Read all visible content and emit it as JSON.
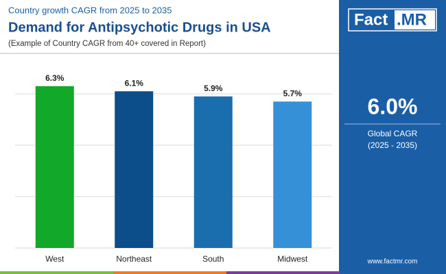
{
  "header": {
    "kicker": "Country growth CAGR from 2025 to 2035",
    "title": "Demand for Antipsychotic Drugs in USA",
    "subtitle": "(Example of Country CAGR from 40+ covered in Report)"
  },
  "chart_data": {
    "type": "bar",
    "categories": [
      "West",
      "Northeast",
      "South",
      "Midwest"
    ],
    "values": [
      6.3,
      6.1,
      5.9,
      5.7
    ],
    "value_labels": [
      "6.3%",
      "6.1%",
      "5.9%",
      "5.7%"
    ],
    "colors": [
      "#12a82a",
      "#0b4e8a",
      "#1b6ead",
      "#3590d8"
    ],
    "ylim": [
      0,
      8
    ],
    "yticks": [
      0,
      2,
      4,
      6
    ],
    "grid": true
  },
  "sidebar": {
    "logo_left": "Fact",
    "logo_right": ".MR",
    "value": "6.0%",
    "label": "Global CAGR",
    "period": "(2025 - 2035)",
    "website": "www.factmr.com"
  }
}
